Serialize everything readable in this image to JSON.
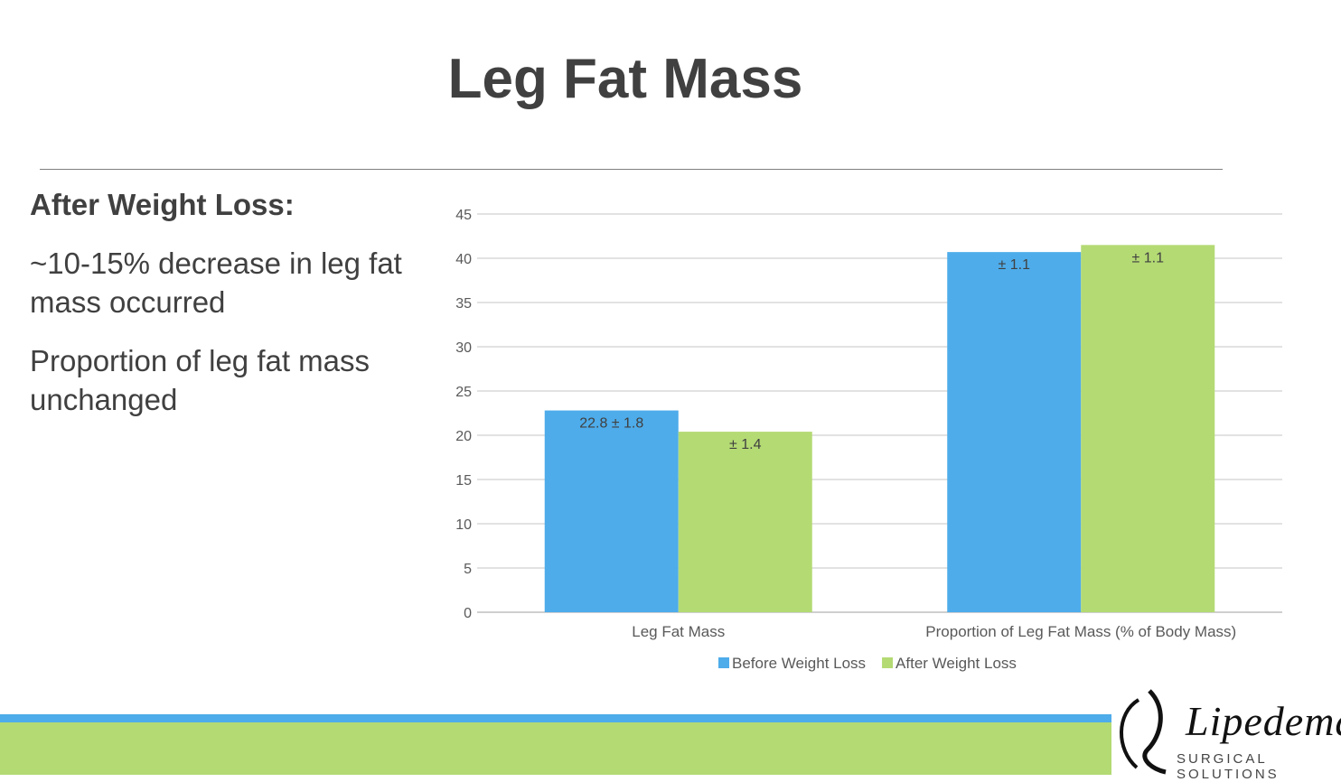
{
  "slide": {
    "title": "Leg Fat Mass",
    "bullets_heading": "After Weight Loss:",
    "bullets": [
      " ~10-15% decrease in leg fat mass occurred",
      "Proportion of leg fat mass unchanged"
    ]
  },
  "logo": {
    "word": "Lipedema",
    "subtitle": "SURGICAL SOLUTIONS"
  },
  "chart_data": {
    "type": "bar",
    "title": "",
    "xlabel": "",
    "ylabel": "",
    "ylim": [
      0,
      45
    ],
    "yticks": [
      0,
      5,
      10,
      15,
      20,
      25,
      30,
      35,
      40,
      45
    ],
    "grid": true,
    "legend_position": "bottom",
    "categories": [
      "Leg Fat Mass",
      "Proportion of Leg Fat Mass (% of Body Mass)"
    ],
    "series": [
      {
        "name": "Before Weight Loss",
        "color": "#4eacea",
        "values": [
          22.8,
          40.7
        ],
        "labels": [
          "22.8 ± 1.8",
          "± 1.1"
        ]
      },
      {
        "name": "After Weight Loss",
        "color": "#b4da74",
        "values": [
          20.4,
          41.5
        ],
        "labels": [
          "± 1.4",
          "± 1.1"
        ]
      }
    ]
  }
}
